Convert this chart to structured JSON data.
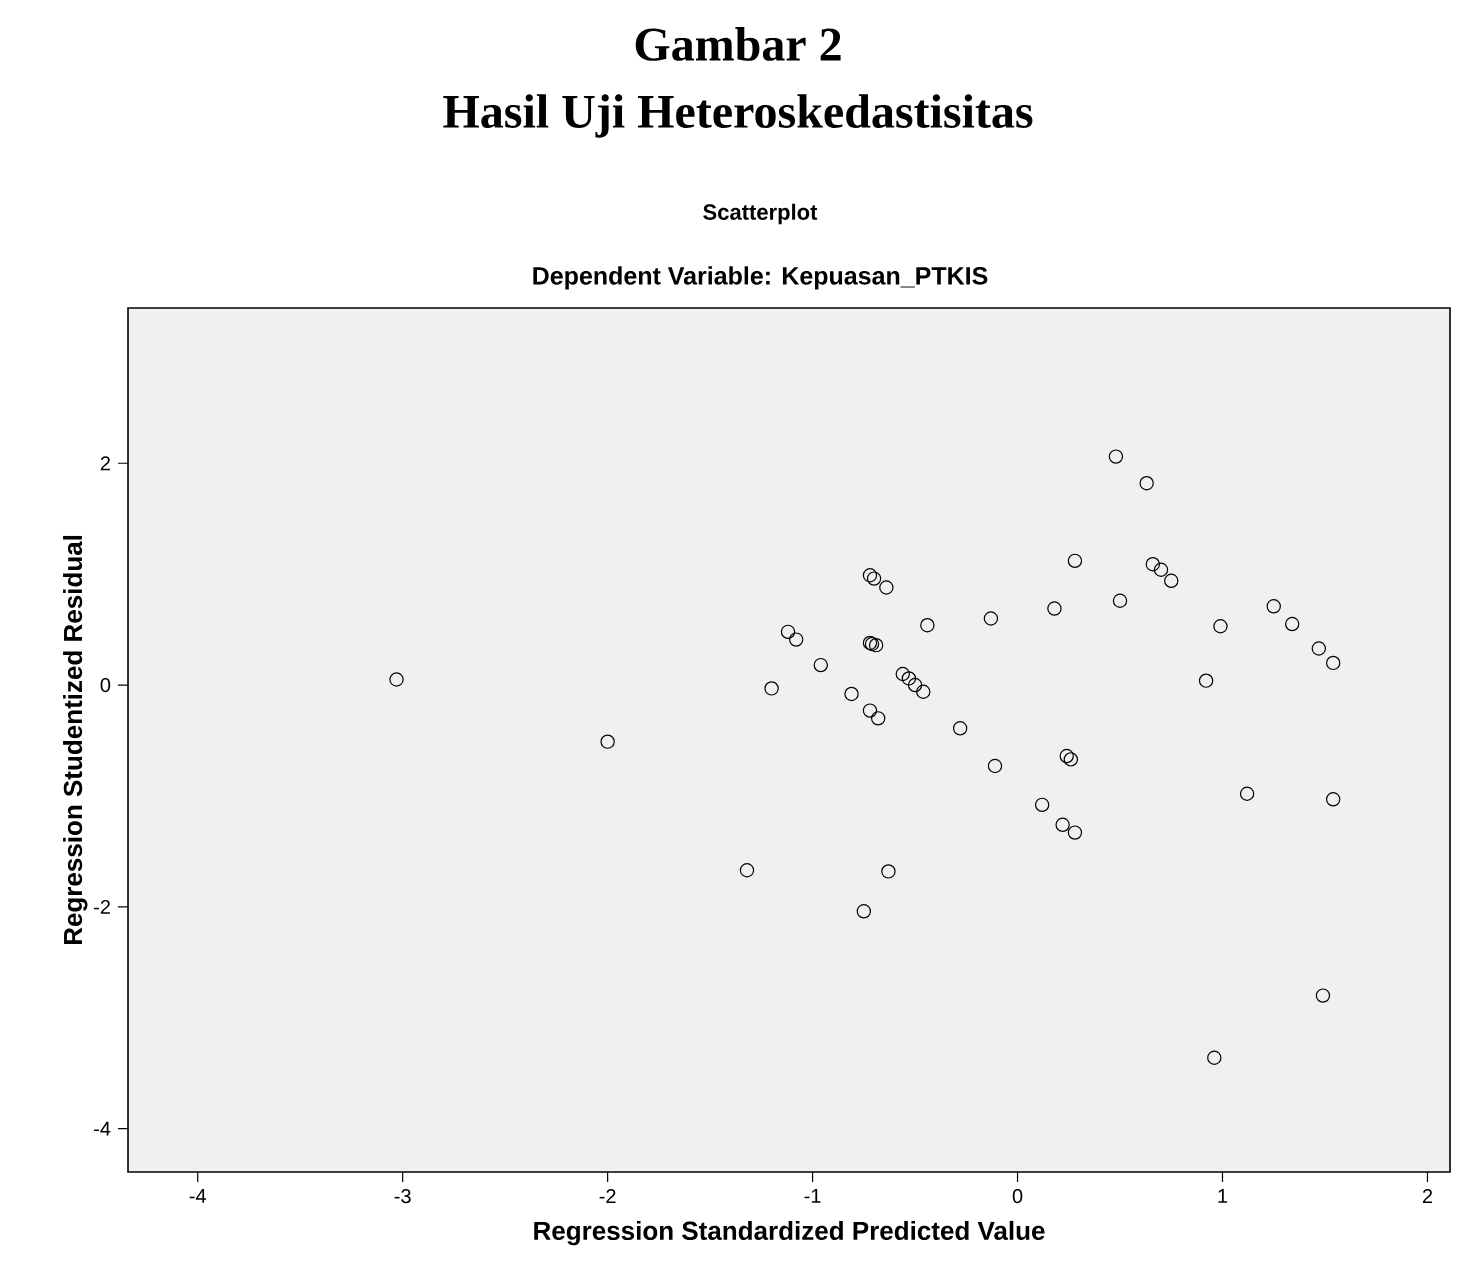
{
  "chart_data": {
    "type": "scatter",
    "title": "Scatterplot",
    "subtitle": "Dependent Variable: Kepuasan_PTKIS",
    "xlabel": "Regression Standardized Predicted Value",
    "ylabel": "Regression Studentized Residual",
    "annotations": [
      "Gambar 2",
      "Hasil Uji Heteroskedastisitas"
    ],
    "xlim": [
      -4.34,
      2.11
    ],
    "ylim": [
      -4.39,
      3.4
    ],
    "xticks": [
      -4,
      -3,
      -2,
      -1,
      0,
      1,
      2
    ],
    "yticks": [
      -4,
      -2,
      0,
      2
    ],
    "marker": "circle",
    "grid": false,
    "series": [
      {
        "color": "#000000",
        "x": [
          -3.03,
          -2.0,
          -1.32,
          -1.2,
          -1.12,
          -1.08,
          -0.96,
          -0.81,
          -0.75,
          -0.72,
          -0.7,
          -0.64,
          -0.72,
          -0.71,
          -0.69,
          -0.72,
          -0.68,
          -0.63,
          -0.56,
          -0.53,
          -0.5,
          -0.46,
          -0.44,
          -0.28,
          -0.13,
          -0.11,
          0.12,
          0.18,
          0.22,
          0.28,
          0.24,
          0.26,
          0.28,
          0.48,
          0.5,
          0.63,
          0.66,
          0.7,
          0.75,
          0.92,
          0.96,
          0.99,
          1.12,
          1.25,
          1.34,
          1.47,
          1.49,
          1.54,
          1.54
        ],
        "values": [
          0.05,
          -0.51,
          -1.67,
          -0.03,
          0.48,
          0.41,
          0.18,
          -0.08,
          -2.04,
          0.99,
          0.96,
          0.88,
          0.38,
          0.37,
          0.36,
          -0.23,
          -0.3,
          -1.68,
          0.1,
          0.06,
          0.0,
          -0.06,
          0.54,
          -0.39,
          0.6,
          -0.73,
          -1.08,
          0.69,
          -1.26,
          -1.33,
          -0.64,
          -0.67,
          1.12,
          2.06,
          0.76,
          1.82,
          1.09,
          1.04,
          0.94,
          0.04,
          -3.36,
          0.53,
          -0.98,
          0.71,
          0.55,
          0.33,
          -2.8,
          0.2,
          -1.03
        ]
      }
    ]
  }
}
